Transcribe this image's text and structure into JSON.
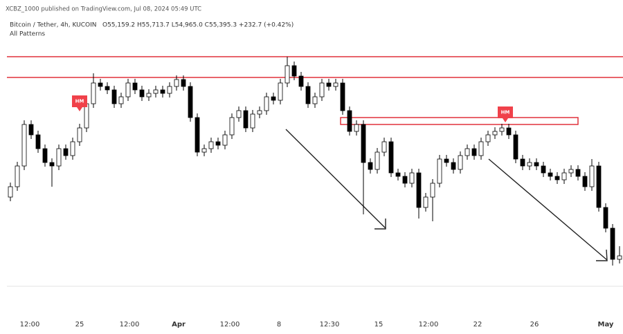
{
  "header": {
    "published": "XCBZ_1000 published on TradingView.com, Jul 08, 2024 05:49 UTC",
    "symbol": "Bitcoin / Tether, 4h, KUCOIN",
    "ohlc": "O55,159.2 H55,713.7 L54,965.0 C55,395.3 +232.7 (+0.42%)",
    "indicator": "All Patterns"
  },
  "chart_data": {
    "type": "candlestick",
    "up_color": "#ffffff",
    "down_color": "#000000",
    "outline": "#000000",
    "xlim": [
      -0.5,
      88.5
    ],
    "ylim": [
      54500,
      72000
    ],
    "xticks": [
      {
        "value": 2.8,
        "label": "12:00"
      },
      {
        "value": 10,
        "label": "25"
      },
      {
        "value": 17.2,
        "label": "12:00"
      },
      {
        "value": 24.3,
        "label": "Apr"
      },
      {
        "value": 31.7,
        "label": "12:00"
      },
      {
        "value": 38.8,
        "label": "8"
      },
      {
        "value": 46.1,
        "label": "12:30"
      },
      {
        "value": 53.2,
        "label": "15"
      },
      {
        "value": 60.4,
        "label": "12:00"
      },
      {
        "value": 67.5,
        "label": "22"
      },
      {
        "value": 75.7,
        "label": "26"
      },
      {
        "value": 86,
        "label": "May"
      }
    ],
    "open": [
      60750,
      61500,
      63000,
      66000,
      65250,
      64250,
      63250,
      63000,
      64250,
      63750,
      64750,
      65750,
      67500,
      69000,
      68750,
      68500,
      67500,
      68000,
      69000,
      68500,
      68000,
      68250,
      68500,
      68250,
      68750,
      69250,
      68750,
      66500,
      64000,
      64250,
      64750,
      64500,
      65250,
      66500,
      67000,
      65750,
      66750,
      67000,
      68000,
      67750,
      69000,
      70250,
      69500,
      68750,
      67500,
      68000,
      69000,
      68750,
      69000,
      67000,
      65500,
      66000,
      63250,
      62750,
      64000,
      64750,
      62500,
      62250,
      61750,
      62500,
      60000,
      60750,
      61750,
      63500,
      63250,
      62750,
      63750,
      64250,
      63750,
      64750,
      65250,
      65500,
      65750,
      65250,
      63500,
      63000,
      63250,
      63000,
      62500,
      62250,
      62000,
      62500,
      62750,
      62250,
      61500,
      63000,
      60000,
      58500,
      56250
    ],
    "high": [
      61800,
      63300,
      66300,
      66300,
      65550,
      64550,
      63550,
      64550,
      64550,
      65050,
      66050,
      67800,
      69700,
      69300,
      69050,
      68800,
      68300,
      69300,
      69300,
      68800,
      68550,
      68800,
      68800,
      69050,
      69550,
      69550,
      69050,
      66800,
      64550,
      65050,
      65050,
      65550,
      66800,
      67300,
      67300,
      67050,
      67300,
      68300,
      68300,
      69300,
      70900,
      70550,
      69800,
      69050,
      68300,
      69300,
      69300,
      69300,
      69300,
      67300,
      66300,
      66300,
      63550,
      64300,
      65050,
      65050,
      62800,
      62550,
      62800,
      62800,
      61050,
      62050,
      63800,
      63800,
      63550,
      64050,
      64550,
      64550,
      65050,
      65550,
      65800,
      66050,
      66050,
      65550,
      63800,
      63550,
      63550,
      63300,
      62800,
      62550,
      62800,
      63050,
      63050,
      62550,
      63500,
      63300,
      60300,
      58800,
      57200
    ],
    "low": [
      60450,
      61200,
      62700,
      64950,
      63950,
      62950,
      61500,
      62700,
      63450,
      63450,
      64450,
      65450,
      67200,
      68450,
      68200,
      67200,
      67200,
      67700,
      68200,
      67700,
      67700,
      67950,
      67950,
      67950,
      68450,
      68450,
      66200,
      63700,
      63700,
      63950,
      64200,
      64200,
      64950,
      66200,
      65450,
      65450,
      66450,
      66700,
      67450,
      67450,
      68700,
      69200,
      68450,
      67200,
      67200,
      67700,
      68450,
      68450,
      66700,
      65200,
      65200,
      59500,
      62450,
      62450,
      63700,
      62200,
      61950,
      61450,
      61450,
      59200,
      59700,
      59000,
      61450,
      62950,
      62450,
      62450,
      63450,
      63450,
      63450,
      64450,
      64950,
      65200,
      64950,
      63200,
      62700,
      62700,
      62700,
      62200,
      61950,
      61700,
      61700,
      62200,
      61950,
      61200,
      61200,
      59700,
      58200,
      55800,
      55950
    ],
    "close": [
      61500,
      63000,
      66000,
      65250,
      64250,
      63250,
      63000,
      64250,
      63750,
      64750,
      65750,
      67500,
      69000,
      68750,
      68500,
      67500,
      68000,
      69000,
      68500,
      68000,
      68250,
      68500,
      68250,
      68750,
      69250,
      68750,
      66500,
      64000,
      64250,
      64750,
      64500,
      65250,
      66500,
      67000,
      65750,
      66750,
      67000,
      68000,
      67750,
      69000,
      70250,
      69500,
      68750,
      67500,
      68000,
      69000,
      68750,
      69000,
      67000,
      65500,
      66000,
      63250,
      62750,
      64000,
      64750,
      62500,
      62250,
      61750,
      62500,
      60000,
      60750,
      61750,
      63500,
      63250,
      62750,
      63750,
      64250,
      63750,
      64750,
      65250,
      65500,
      65750,
      65250,
      63500,
      63000,
      63250,
      63000,
      62500,
      62250,
      62000,
      62500,
      62750,
      62250,
      61500,
      63000,
      60000,
      58500,
      56250,
      56500
    ],
    "levels": [
      70900,
      69400
    ],
    "level_color": "#e0303a",
    "zone": {
      "x": [
        47.7,
        82
      ],
      "y": [
        66000,
        66500
      ]
    },
    "annotations": [
      {
        "text": "HM",
        "x": 10,
        "y": 66900
      },
      {
        "text": "HM",
        "x": 71.5,
        "y": 66100
      }
    ],
    "annotation_color": "#f0414a"
  }
}
